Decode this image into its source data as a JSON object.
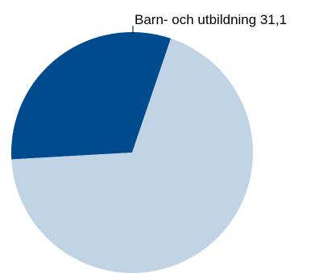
{
  "chart_data": {
    "type": "pie",
    "slices": [
      {
        "label": "Barn- och utbildning",
        "value": 31.1,
        "value_text": "31,1",
        "color": "#004b8d"
      },
      {
        "label": "",
        "value": 68.9,
        "value_text": "",
        "color": "#c1d4e6"
      }
    ],
    "labeled_slice": {
      "text": "Barn- och utbildning 31,1"
    }
  }
}
